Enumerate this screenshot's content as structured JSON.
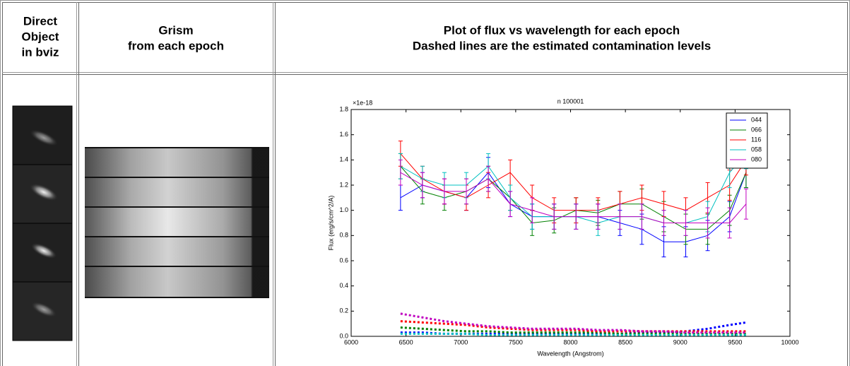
{
  "table": {
    "headers": [
      [
        "Direct",
        "Object",
        "in bviz"
      ],
      [
        "Grism",
        "from each epoch"
      ],
      [
        "Plot of flux vs wavelength for each epoch",
        "Dashed lines are the estimated contamination levels"
      ]
    ]
  },
  "chart_data": {
    "type": "line",
    "title": "n 100001",
    "xlabel": "Wavelength (Angstrom)",
    "ylabel": "Flux (erg/s/cm^2/A)",
    "y_offset_label": "×1e-18",
    "xlim": [
      6000,
      10000
    ],
    "xticks": [
      6000,
      6500,
      7000,
      7500,
      8000,
      8500,
      9000,
      9500,
      10000
    ],
    "ylim": [
      0,
      1.8
    ],
    "yticks": [
      {
        "value": 0,
        "label": "0.0"
      },
      0.2,
      0.4,
      0.6,
      0.8,
      {
        "value": 1,
        "label": "1.0"
      },
      1.2,
      1.4,
      1.6,
      1.8
    ],
    "legend": "upper right",
    "x": [
      6450,
      6650,
      6850,
      7050,
      7250,
      7450,
      7650,
      7850,
      8050,
      8250,
      8450,
      8650,
      8850,
      9050,
      9250,
      9450,
      9600
    ],
    "series": [
      {
        "name": "044",
        "color": "#0000ff",
        "values": [
          1.1,
          1.2,
          1.15,
          1.1,
          1.3,
          1.05,
          0.95,
          0.95,
          0.95,
          0.95,
          0.9,
          0.85,
          0.75,
          0.75,
          0.8,
          0.95,
          1.3
        ],
        "errors": [
          0.1,
          0.1,
          0.1,
          0.1,
          0.12,
          0.1,
          0.1,
          0.1,
          0.1,
          0.1,
          0.1,
          0.12,
          0.12,
          0.12,
          0.12,
          0.12,
          0.12
        ]
      },
      {
        "name": "066",
        "color": "#008000",
        "values": [
          1.35,
          1.15,
          1.1,
          1.15,
          1.25,
          1.1,
          0.9,
          0.92,
          1.0,
          0.98,
          1.05,
          1.05,
          0.95,
          0.85,
          0.85,
          1.0,
          1.3
        ],
        "errors": [
          0.1,
          0.1,
          0.1,
          0.1,
          0.1,
          0.1,
          0.1,
          0.1,
          0.1,
          0.1,
          0.1,
          0.12,
          0.12,
          0.12,
          0.12,
          0.12,
          0.12
        ]
      },
      {
        "name": "116",
        "color": "#ff0000",
        "values": [
          1.45,
          1.25,
          1.15,
          1.1,
          1.2,
          1.3,
          1.1,
          1.0,
          1.0,
          1.0,
          1.05,
          1.1,
          1.05,
          1.0,
          1.1,
          1.2,
          1.4
        ],
        "errors": [
          0.1,
          0.1,
          0.1,
          0.1,
          0.1,
          0.1,
          0.1,
          0.1,
          0.1,
          0.1,
          0.1,
          0.1,
          0.1,
          0.1,
          0.12,
          0.12,
          0.12
        ]
      },
      {
        "name": "058",
        "color": "#00c0c0",
        "values": [
          1.35,
          1.25,
          1.2,
          1.2,
          1.35,
          1.1,
          0.95,
          0.95,
          0.95,
          0.9,
          0.95,
          0.95,
          0.9,
          0.9,
          0.95,
          1.3,
          1.45
        ],
        "errors": [
          0.1,
          0.1,
          0.1,
          0.1,
          0.1,
          0.1,
          0.1,
          0.1,
          0.1,
          0.1,
          0.1,
          0.1,
          0.1,
          0.1,
          0.12,
          0.12,
          0.12
        ]
      },
      {
        "name": "080",
        "color": "#c000c0",
        "values": [
          1.3,
          1.2,
          1.15,
          1.15,
          1.25,
          1.05,
          1.0,
          0.95,
          0.95,
          0.95,
          0.95,
          0.95,
          0.9,
          0.9,
          0.9,
          0.9,
          1.05
        ],
        "errors": [
          0.1,
          0.1,
          0.1,
          0.1,
          0.1,
          0.1,
          0.1,
          0.1,
          0.1,
          0.1,
          0.1,
          0.1,
          0.1,
          0.1,
          0.12,
          0.12,
          0.12
        ]
      }
    ],
    "contamination": [
      {
        "color": "#0000ff",
        "values": [
          0.03,
          0.03,
          0.02,
          0.02,
          0.02,
          0.02,
          0.02,
          0.02,
          0.02,
          0.02,
          0.02,
          0.03,
          0.03,
          0.04,
          0.06,
          0.09,
          0.11
        ]
      },
      {
        "color": "#008000",
        "values": [
          0.07,
          0.06,
          0.05,
          0.04,
          0.04,
          0.03,
          0.03,
          0.03,
          0.03,
          0.03,
          0.02,
          0.02,
          0.02,
          0.02,
          0.02,
          0.02,
          0.02
        ]
      },
      {
        "color": "#ff0000",
        "values": [
          0.12,
          0.11,
          0.1,
          0.09,
          0.07,
          0.06,
          0.05,
          0.05,
          0.05,
          0.04,
          0.04,
          0.04,
          0.04,
          0.04,
          0.04,
          0.04,
          0.04
        ]
      },
      {
        "color": "#00c0c0",
        "values": [
          0.02,
          0.02,
          0.02,
          0.02,
          0.01,
          0.01,
          0.01,
          0.01,
          0.01,
          0.01,
          0.01,
          0.01,
          0.01,
          0.01,
          0.01,
          0.01,
          0.01
        ]
      },
      {
        "color": "#c000c0",
        "values": [
          0.18,
          0.15,
          0.12,
          0.1,
          0.08,
          0.07,
          0.06,
          0.06,
          0.06,
          0.05,
          0.05,
          0.04,
          0.04,
          0.03,
          0.03,
          0.03,
          0.03
        ]
      }
    ]
  }
}
